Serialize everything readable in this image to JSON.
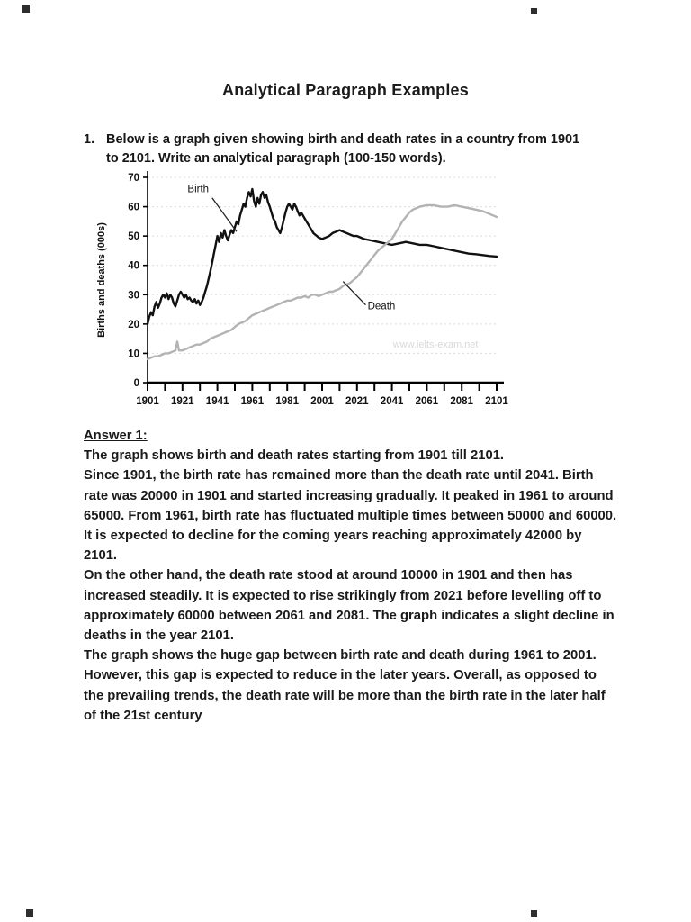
{
  "page": {
    "title": "Analytical Paragraph Examples"
  },
  "question": {
    "number": "1.",
    "text": "Below is a graph given showing birth and death rates in a country from 1901 to 2101. Write an analytical paragraph (100-150 words)."
  },
  "chart_data": {
    "type": "line",
    "title": "",
    "xlabel": "",
    "ylabel": "Births and deaths (000s)",
    "xlim": [
      1901,
      2101
    ],
    "ylim": [
      0,
      70
    ],
    "x_ticks": [
      1901,
      1921,
      1941,
      1961,
      1981,
      2001,
      2021,
      2041,
      2061,
      2081,
      2101
    ],
    "y_ticks": [
      0,
      10,
      20,
      30,
      40,
      50,
      60,
      70
    ],
    "grid": "horizontal-dashed",
    "legend_position": "inline-annotations",
    "watermark": "www.ielts-exam.net",
    "watermark_at": [
      2066,
      12
    ],
    "series": [
      {
        "name": "Birth",
        "color": "#111111",
        "points": [
          [
            1901,
            20
          ],
          [
            1902,
            22.5
          ],
          [
            1903,
            24
          ],
          [
            1904,
            23
          ],
          [
            1905,
            26
          ],
          [
            1906,
            27.5
          ],
          [
            1907,
            25.5
          ],
          [
            1908,
            27
          ],
          [
            1909,
            29
          ],
          [
            1910,
            30
          ],
          [
            1911,
            29
          ],
          [
            1912,
            30.5
          ],
          [
            1913,
            28.5
          ],
          [
            1914,
            30
          ],
          [
            1915,
            29
          ],
          [
            1916,
            27
          ],
          [
            1917,
            26
          ],
          [
            1918,
            28
          ],
          [
            1919,
            30
          ],
          [
            1920,
            31
          ],
          [
            1921,
            30
          ],
          [
            1922,
            29
          ],
          [
            1923,
            30
          ],
          [
            1924,
            28.5
          ],
          [
            1925,
            29
          ],
          [
            1926,
            28
          ],
          [
            1927,
            27.5
          ],
          [
            1928,
            28.5
          ],
          [
            1929,
            27
          ],
          [
            1930,
            28
          ],
          [
            1931,
            26.5
          ],
          [
            1932,
            27.5
          ],
          [
            1933,
            29
          ],
          [
            1934,
            31
          ],
          [
            1935,
            33
          ],
          [
            1936,
            35.5
          ],
          [
            1937,
            38
          ],
          [
            1938,
            41
          ],
          [
            1939,
            44
          ],
          [
            1940,
            47
          ],
          [
            1941,
            50
          ],
          [
            1942,
            48
          ],
          [
            1943,
            51
          ],
          [
            1944,
            49.5
          ],
          [
            1945,
            52
          ],
          [
            1946,
            50
          ],
          [
            1947,
            48.5
          ],
          [
            1948,
            50.5
          ],
          [
            1949,
            52
          ],
          [
            1950,
            51
          ],
          [
            1951,
            53
          ],
          [
            1952,
            55
          ],
          [
            1953,
            54
          ],
          [
            1954,
            57
          ],
          [
            1955,
            59
          ],
          [
            1956,
            61
          ],
          [
            1957,
            60
          ],
          [
            1958,
            63
          ],
          [
            1959,
            65
          ],
          [
            1960,
            63.5
          ],
          [
            1961,
            66
          ],
          [
            1962,
            62
          ],
          [
            1963,
            60
          ],
          [
            1964,
            63
          ],
          [
            1965,
            61
          ],
          [
            1966,
            64
          ],
          [
            1967,
            65
          ],
          [
            1968,
            63
          ],
          [
            1969,
            64
          ],
          [
            1970,
            61.5
          ],
          [
            1971,
            60
          ],
          [
            1972,
            58
          ],
          [
            1973,
            56
          ],
          [
            1974,
            55
          ],
          [
            1975,
            53
          ],
          [
            1976,
            52
          ],
          [
            1977,
            51
          ],
          [
            1978,
            53
          ],
          [
            1979,
            55.5
          ],
          [
            1980,
            58
          ],
          [
            1981,
            60
          ],
          [
            1982,
            61
          ],
          [
            1983,
            60
          ],
          [
            1984,
            59
          ],
          [
            1985,
            61
          ],
          [
            1986,
            60
          ],
          [
            1987,
            58.5
          ],
          [
            1988,
            57
          ],
          [
            1989,
            58
          ],
          [
            1990,
            57
          ],
          [
            1991,
            56
          ],
          [
            1992,
            55
          ],
          [
            1993,
            54
          ],
          [
            1994,
            53
          ],
          [
            1995,
            52
          ],
          [
            1996,
            51
          ],
          [
            1997,
            50.5
          ],
          [
            1998,
            50
          ],
          [
            1999,
            49.5
          ],
          [
            2001,
            49
          ],
          [
            2003,
            49.5
          ],
          [
            2005,
            50
          ],
          [
            2007,
            51
          ],
          [
            2009,
            51.5
          ],
          [
            2011,
            52
          ],
          [
            2013,
            51.5
          ],
          [
            2015,
            51
          ],
          [
            2017,
            50.5
          ],
          [
            2019,
            50
          ],
          [
            2021,
            50
          ],
          [
            2025,
            49
          ],
          [
            2029,
            48.5
          ],
          [
            2033,
            48
          ],
          [
            2037,
            47.5
          ],
          [
            2041,
            47
          ],
          [
            2045,
            47.5
          ],
          [
            2049,
            48
          ],
          [
            2053,
            47.5
          ],
          [
            2057,
            47
          ],
          [
            2061,
            47
          ],
          [
            2065,
            46.5
          ],
          [
            2069,
            46
          ],
          [
            2073,
            45.5
          ],
          [
            2077,
            45
          ],
          [
            2081,
            44.5
          ],
          [
            2085,
            44
          ],
          [
            2089,
            43.8
          ],
          [
            2093,
            43.5
          ],
          [
            2097,
            43.2
          ],
          [
            2101,
            43
          ]
        ]
      },
      {
        "name": "Death",
        "color": "#b3b3b3",
        "points": [
          [
            1901,
            8
          ],
          [
            1903,
            8.5
          ],
          [
            1905,
            9
          ],
          [
            1907,
            9
          ],
          [
            1909,
            9.5
          ],
          [
            1911,
            10
          ],
          [
            1913,
            10
          ],
          [
            1915,
            10.5
          ],
          [
            1917,
            11
          ],
          [
            1918,
            14
          ],
          [
            1919,
            11
          ],
          [
            1921,
            11
          ],
          [
            1923,
            11.5
          ],
          [
            1925,
            12
          ],
          [
            1927,
            12.5
          ],
          [
            1929,
            13
          ],
          [
            1931,
            13
          ],
          [
            1933,
            13.5
          ],
          [
            1935,
            14
          ],
          [
            1937,
            15
          ],
          [
            1939,
            15.5
          ],
          [
            1941,
            16
          ],
          [
            1943,
            16.5
          ],
          [
            1945,
            17
          ],
          [
            1947,
            17.5
          ],
          [
            1949,
            18
          ],
          [
            1951,
            19
          ],
          [
            1953,
            20
          ],
          [
            1955,
            20.5
          ],
          [
            1957,
            21
          ],
          [
            1959,
            22
          ],
          [
            1961,
            23
          ],
          [
            1963,
            23.5
          ],
          [
            1965,
            24
          ],
          [
            1967,
            24.5
          ],
          [
            1969,
            25
          ],
          [
            1971,
            25.5
          ],
          [
            1973,
            26
          ],
          [
            1975,
            26.5
          ],
          [
            1977,
            27
          ],
          [
            1979,
            27.5
          ],
          [
            1981,
            28
          ],
          [
            1983,
            28
          ],
          [
            1985,
            28.5
          ],
          [
            1987,
            29
          ],
          [
            1989,
            29
          ],
          [
            1991,
            29.5
          ],
          [
            1993,
            29
          ],
          [
            1995,
            30
          ],
          [
            1997,
            30
          ],
          [
            1999,
            29.5
          ],
          [
            2001,
            30
          ],
          [
            2003,
            30.5
          ],
          [
            2005,
            31
          ],
          [
            2007,
            31
          ],
          [
            2009,
            31.5
          ],
          [
            2011,
            32
          ],
          [
            2013,
            33
          ],
          [
            2015,
            33.5
          ],
          [
            2017,
            34
          ],
          [
            2019,
            35
          ],
          [
            2021,
            36
          ],
          [
            2023,
            37.5
          ],
          [
            2025,
            39
          ],
          [
            2027,
            40.5
          ],
          [
            2029,
            42
          ],
          [
            2031,
            43.5
          ],
          [
            2033,
            45
          ],
          [
            2035,
            46
          ],
          [
            2037,
            47
          ],
          [
            2039,
            48
          ],
          [
            2041,
            49
          ],
          [
            2043,
            51
          ],
          [
            2045,
            53
          ],
          [
            2047,
            55
          ],
          [
            2049,
            56.5
          ],
          [
            2051,
            58
          ],
          [
            2053,
            59
          ],
          [
            2055,
            59.5
          ],
          [
            2057,
            60
          ],
          [
            2061,
            60.5
          ],
          [
            2065,
            60.5
          ],
          [
            2069,
            60
          ],
          [
            2073,
            60
          ],
          [
            2077,
            60.5
          ],
          [
            2081,
            60
          ],
          [
            2085,
            59.5
          ],
          [
            2089,
            59
          ],
          [
            2093,
            58.5
          ],
          [
            2097,
            57.5
          ],
          [
            2101,
            56.5
          ]
        ]
      }
    ],
    "annotations": [
      {
        "label": "Birth",
        "label_at": [
          1930,
          65
        ],
        "line_from": [
          1938,
          63
        ],
        "line_to": [
          1952,
          51.5
        ]
      },
      {
        "label": "Death",
        "label_at": [
          2035,
          25
        ],
        "line_from": [
          2026,
          26.5
        ],
        "line_to": [
          2013,
          34.5
        ]
      }
    ]
  },
  "answer": {
    "heading": "Answer 1:",
    "paragraphs": [
      "The graph shows birth and death rates starting from 1901 till 2101.",
      "Since 1901, the birth rate has remained more than the death rate until 2041. Birth rate was 20000 in 1901 and started increasing gradually. It peaked in 1961 to around 65000. From 1961, birth rate has fluctuated multiple times between 50000 and 60000. It is expected to decline for the coming years reaching approximately 42000 by 2101.",
      "On the other hand, the death rate stood at around 10000 in 1901 and then has increased steadily. It is expected to rise strikingly from 2021 before levelling off to approximately 60000 between 2061 and 2081. The graph indicates a slight decline in deaths in the year 2101.",
      "The graph shows the huge gap between birth rate and death during 1961 to 2001. However, this gap is expected to reduce in the later years. Overall, as opposed to the prevailing trends, the death rate will be more than the birth rate in the later half of the 21st century"
    ]
  }
}
